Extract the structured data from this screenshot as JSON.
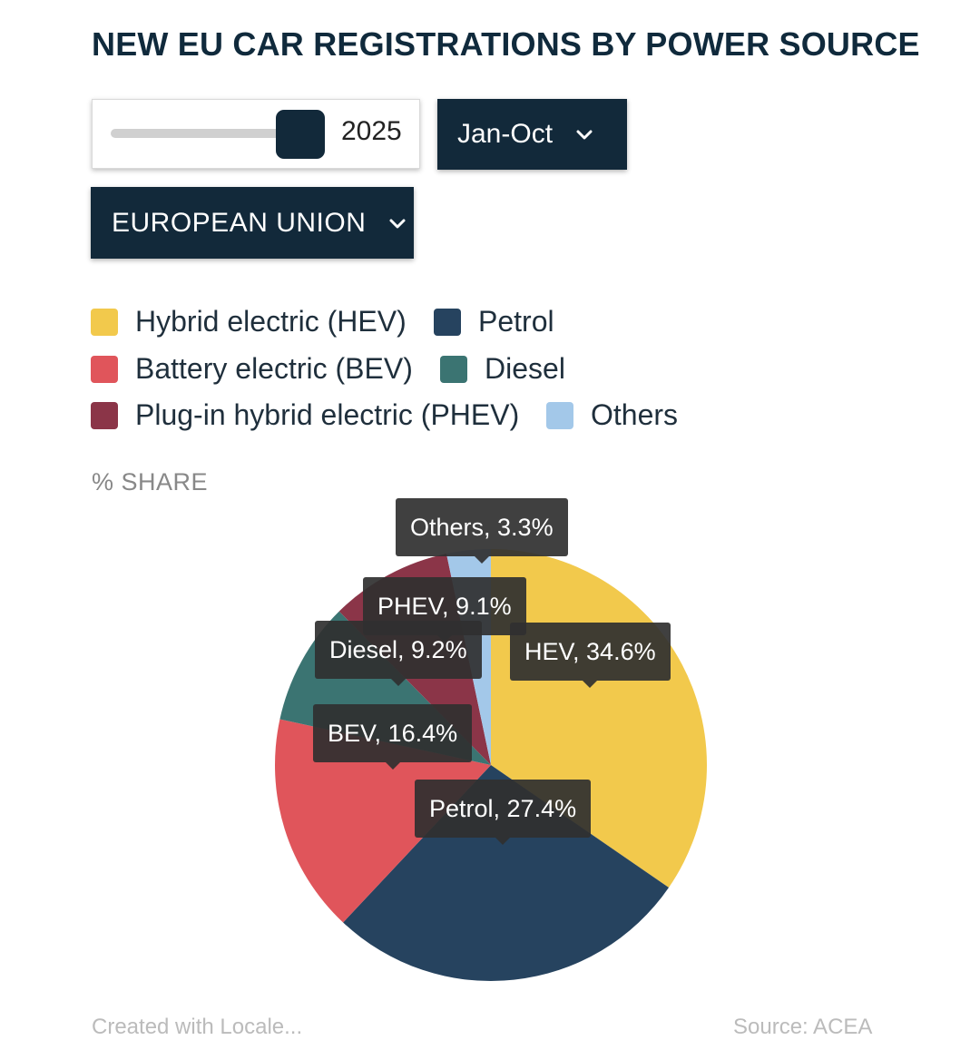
{
  "header": {
    "title": "NEW EU CAR REGISTRATIONS BY POWER SOURCE"
  },
  "controls": {
    "year_value": "2025",
    "period_label": "Jan-Oct",
    "region_label": "EUROPEAN UNION"
  },
  "colors": {
    "HEV": "#f2c94c",
    "BEV": "#e0555b",
    "PHEV": "#8b3548",
    "Petrol": "#26435f",
    "Diesel": "#3b7472",
    "Others": "#a3c8e9"
  },
  "legend": [
    {
      "label": "Hybrid electric (HEV)",
      "key": "HEV"
    },
    {
      "label": "Petrol",
      "key": "Petrol"
    },
    {
      "label": "Battery electric (BEV)",
      "key": "BEV"
    },
    {
      "label": "Diesel",
      "key": "Diesel"
    },
    {
      "label": "Plug-in hybrid electric (PHEV)",
      "key": "PHEV"
    },
    {
      "label": "Others",
      "key": "Others"
    }
  ],
  "share_label": "% SHARE",
  "chart_data": {
    "type": "pie",
    "title": "NEW EU CAR REGISTRATIONS BY POWER SOURCE",
    "unit": "% share",
    "categories": [
      "HEV",
      "Petrol",
      "BEV",
      "Diesel",
      "PHEV",
      "Others"
    ],
    "values": [
      34.6,
      27.4,
      16.4,
      9.2,
      9.1,
      3.3
    ],
    "data_labels": [
      "HEV, 34.6%",
      "Petrol, 27.4%",
      "BEV, 16.4%",
      "Diesel, 9.2%",
      "PHEV, 9.1%",
      "Others, 3.3%"
    ]
  },
  "footer": {
    "left": "Created with Locale...",
    "right": "Source: ACEA"
  }
}
